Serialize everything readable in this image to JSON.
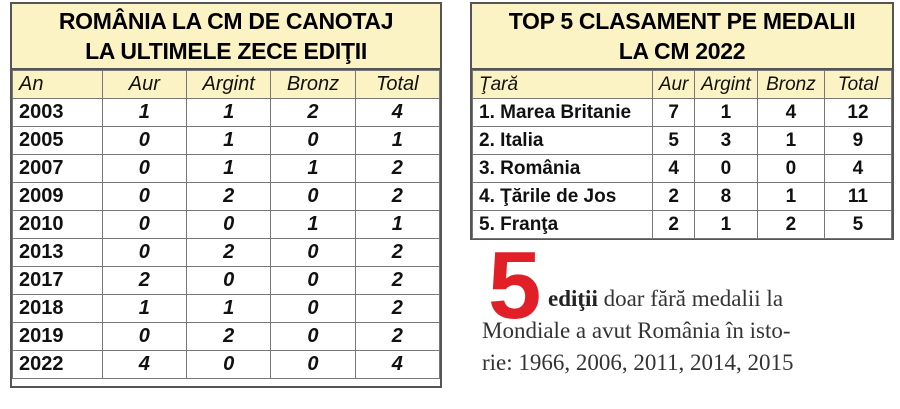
{
  "left_table": {
    "title_lines": [
      "ROMÂNIA LA CM DE CANOTAJ",
      "LA ULTIMELE ZECE EDIŢII"
    ],
    "columns": [
      "An",
      "Aur",
      "Argint",
      "Bronz",
      "Total"
    ],
    "rows": [
      [
        2003,
        1,
        1,
        2,
        4
      ],
      [
        2005,
        0,
        1,
        0,
        1
      ],
      [
        2007,
        0,
        1,
        1,
        2
      ],
      [
        2009,
        0,
        2,
        0,
        2
      ],
      [
        2010,
        0,
        0,
        1,
        1
      ],
      [
        2013,
        0,
        2,
        0,
        2
      ],
      [
        2017,
        2,
        0,
        0,
        2
      ],
      [
        2018,
        1,
        1,
        0,
        2
      ],
      [
        2019,
        0,
        2,
        0,
        2
      ],
      [
        2022,
        4,
        0,
        0,
        4
      ]
    ]
  },
  "right_table": {
    "title_lines": [
      "TOP 5 CLASAMENT PE MEDALII",
      "LA CM 2022"
    ],
    "columns": [
      "Ţară",
      "Aur",
      "Argint",
      "Bronz",
      "Total"
    ],
    "rows": [
      [
        "1. Marea Britanie",
        7,
        1,
        4,
        12
      ],
      [
        "2. Italia",
        5,
        3,
        1,
        9
      ],
      [
        "3. România",
        4,
        0,
        0,
        4
      ],
      [
        "4. Ţările de Jos",
        2,
        8,
        1,
        11
      ],
      [
        "5. Franţa",
        2,
        1,
        2,
        5
      ]
    ]
  },
  "note": {
    "number": "5",
    "bold": "ediţii",
    "lines": [
      "doar fără medalii la",
      "Mondiale a avut România în isto-",
      "rie: 1966, 2006, 2011, 2014, 2015"
    ]
  }
}
